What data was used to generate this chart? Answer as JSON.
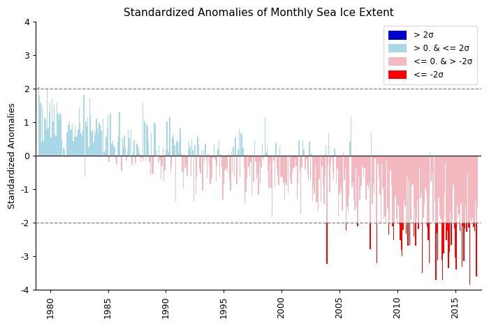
{
  "title": "Standardized Anomalies of Monthly Sea Ice Extent",
  "ylabel": "Standardized Anomalies",
  "ylim": [
    -4,
    4
  ],
  "xlim": [
    1978.75,
    2017.25
  ],
  "yticks": [
    -4,
    -3,
    -2,
    -1,
    0,
    1,
    2,
    3,
    4
  ],
  "xticks": [
    1980,
    1985,
    1990,
    1995,
    2000,
    2005,
    2010,
    2015
  ],
  "hlines": [
    2.0,
    -2.0
  ],
  "color_above2": "#0000cc",
  "color_pos": "#a8d8e8",
  "color_neg": "#f4b8c0",
  "color_below_neg2": "#ff0000",
  "start_year": 1979,
  "n_months": 456,
  "seed": 12,
  "legend_labels": [
    "> 2σ",
    "> 0. & <= 2σ",
    "<= 0. & > -2σ",
    "<= -2σ"
  ],
  "legend_colors": [
    "#0000cc",
    "#a8d8e8",
    "#f4b8c0",
    "#ff0000"
  ],
  "figsize": [
    7.0,
    4.67
  ],
  "dpi": 100
}
